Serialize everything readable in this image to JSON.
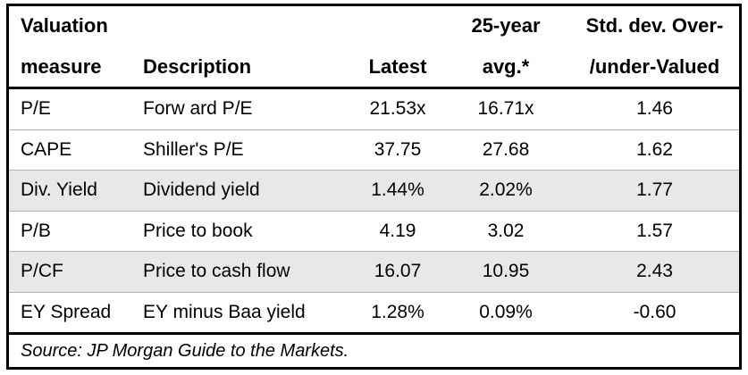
{
  "table": {
    "headers": [
      {
        "line1": "Valuation",
        "line2": "measure"
      },
      {
        "line1": "",
        "line2": "Description"
      },
      {
        "line1": "",
        "line2": "Latest"
      },
      {
        "line1": "25-year",
        "line2": "avg.*"
      },
      {
        "line1": "Std. dev. Over-",
        "line2": "/under-Valued"
      }
    ],
    "rows": [
      {
        "measure": "P/E",
        "description": "Forw ard P/E",
        "latest": "21.53x",
        "avg": "16.71x",
        "stddev": "1.46"
      },
      {
        "measure": "CAPE",
        "description": "Shiller's P/E",
        "latest": "37.75",
        "avg": "27.68",
        "stddev": "1.62"
      },
      {
        "measure": "Div. Yield",
        "description": "Dividend yield",
        "latest": "1.44%",
        "avg": "2.02%",
        "stddev": "1.77"
      },
      {
        "measure": "P/B",
        "description": "Price to book",
        "latest": "4.19",
        "avg": "3.02",
        "stddev": "1.57"
      },
      {
        "measure": "P/CF",
        "description": "Price to cash flow",
        "latest": "16.07",
        "avg": "10.95",
        "stddev": "2.43"
      },
      {
        "measure": "EY Spread",
        "description": "EY minus Baa yield",
        "latest": "1.28%",
        "avg": "0.09%",
        "stddev": "-0.60"
      }
    ],
    "source": "Source: JP Morgan Guide to the Markets."
  },
  "colors": {
    "border": "#000000",
    "text": "#000000",
    "row_shade": "#e8e8e8",
    "row_divider": "#b3b3b3",
    "background": "#ffffff"
  },
  "chart_data": {
    "type": "table",
    "title": "Valuation measures",
    "columns": [
      "Valuation measure",
      "Description",
      "Latest",
      "25-year avg.*",
      "Std. dev. Over-/under-Valued"
    ],
    "rows": [
      [
        "P/E",
        "Forward P/E",
        "21.53x",
        "16.71x",
        1.46
      ],
      [
        "CAPE",
        "Shiller's P/E",
        "37.75",
        "27.68",
        1.62
      ],
      [
        "Div. Yield",
        "Dividend yield",
        "1.44%",
        "2.02%",
        1.77
      ],
      [
        "P/B",
        "Price to book",
        "4.19",
        "3.02",
        1.57
      ],
      [
        "P/CF",
        "Price to cash flow",
        "16.07",
        "10.95",
        2.43
      ],
      [
        "EY Spread",
        "EY minus Baa yield",
        "1.28%",
        "0.09%",
        -0.6
      ]
    ],
    "source": "Source: JP Morgan Guide to the Markets."
  }
}
